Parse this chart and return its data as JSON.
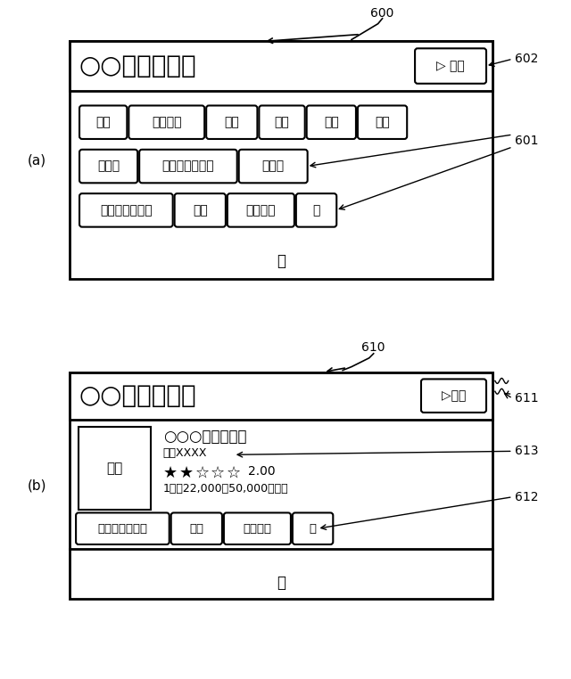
{
  "bg_color": "#ffffff",
  "fig_width": 6.4,
  "fig_height": 7.62,
  "panel_a": {
    "label": "(a)",
    "header_text": "○○県の温泉宿",
    "map_btn": "▷ 地図",
    "label_600": "600",
    "label_602": "602",
    "label_601": "601",
    "row1_tags": [
      "離れ",
      "懐石料理",
      "庭園",
      "料理",
      "部屋",
      "温泉"
    ],
    "row2_tags": [
      "岩風呂",
      "源泉・掛け流し",
      "雰囲気"
    ],
    "row3_tags": [
      "アイスクリーム",
      "夕食",
      "ラーメン",
      "枚"
    ],
    "ellipsis": "："
  },
  "panel_b": {
    "label": "(b)",
    "header_text": "○○県の温泉宿",
    "map_btn": "▷地図",
    "label_610": "610",
    "label_611": "611",
    "label_613": "613",
    "label_612": "612",
    "photo_label": "写真",
    "hotel_name": "○○○温泉ホテル",
    "address": "住所XXXX",
    "stars_filled": 2,
    "stars_empty": 3,
    "rating": "2.00",
    "price": "1泊、22,000～50,000円／人",
    "row_tags": [
      "アイスクリーム",
      "夕食",
      "ラーメン",
      "枚"
    ],
    "ellipsis": "："
  }
}
